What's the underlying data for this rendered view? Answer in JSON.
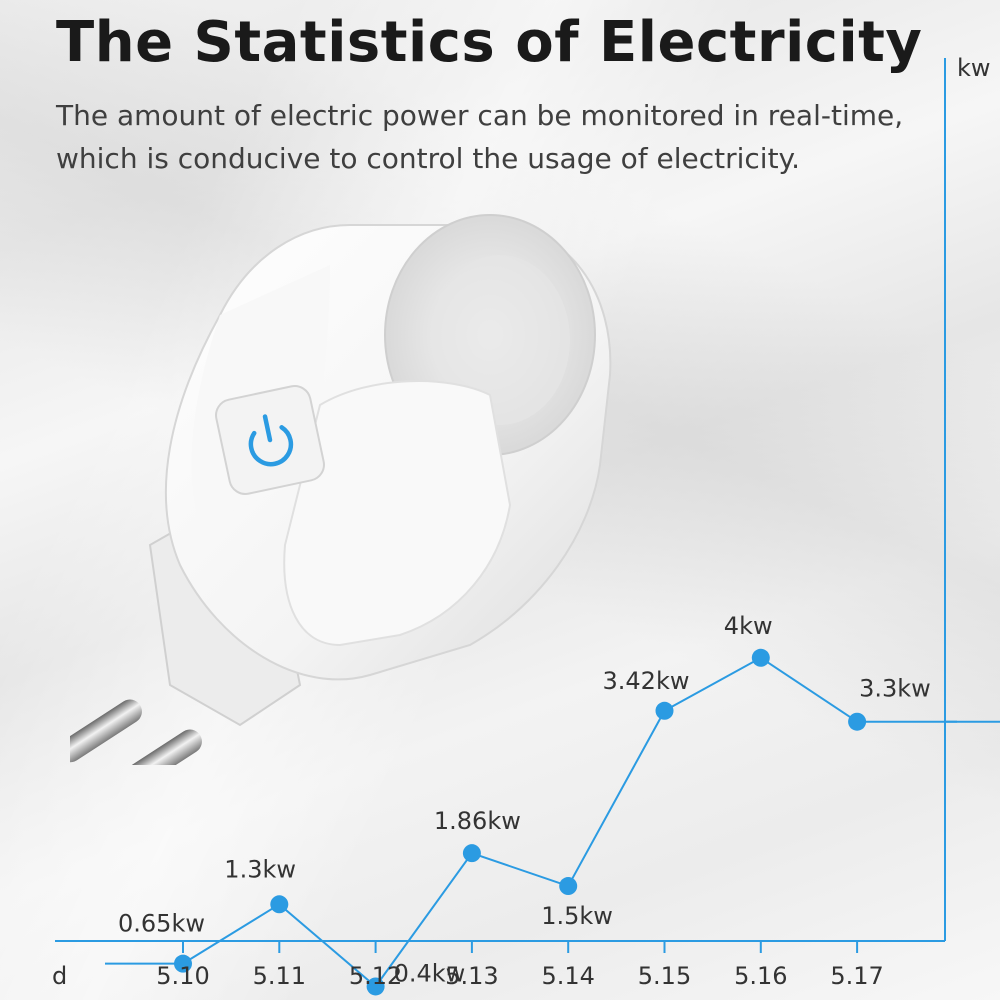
{
  "header": {
    "title": "The Statistics of Electricity",
    "subtitle": "The amount of electric power can be monitored in real-time, which is conducive to control the usage of electricity."
  },
  "colors": {
    "accent": "#2b9be2",
    "text": "#1a1a1a",
    "plug_body": "#ffffff",
    "power_icon": "#2b9be2"
  },
  "icons": {
    "power_button": "power-icon"
  },
  "chart_data": {
    "type": "line",
    "xlabel": "d",
    "ylabel": "kw",
    "categories": [
      "5.10",
      "5.11",
      "5.12",
      "5.13",
      "5.14",
      "5.15",
      "5.16",
      "5.17"
    ],
    "values": [
      0.65,
      1.3,
      0.4,
      1.86,
      1.5,
      3.42,
      4,
      3.3
    ],
    "data_labels": [
      "0.65kw",
      "1.3kw",
      "0.4kw",
      "1.86kw",
      "1.5kw",
      "3.42kw",
      "4kw",
      "3.3kw"
    ],
    "ylim": [
      0,
      10
    ],
    "grid": false,
    "legend": "none"
  }
}
